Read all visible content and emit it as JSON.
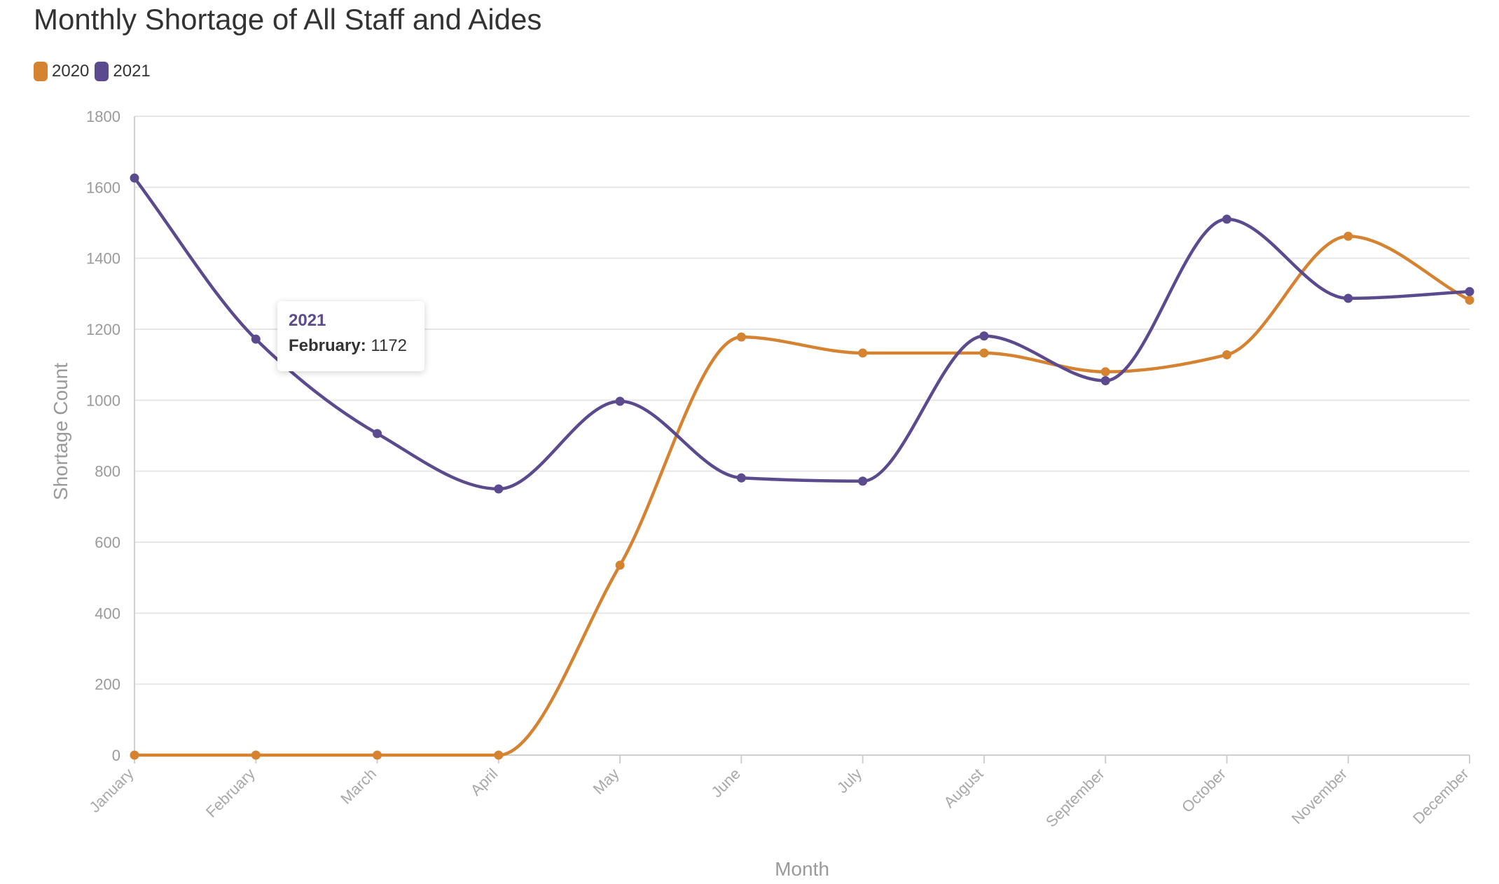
{
  "title": "Monthly Shortage of All Staff and Aides",
  "legend": [
    {
      "label": "2020",
      "color": "#d58231"
    },
    {
      "label": "2021",
      "color": "#5c4a8e"
    }
  ],
  "tooltip": {
    "series": "2021",
    "category": "February:",
    "value": "1172"
  },
  "chart_data": {
    "type": "line",
    "title": "Monthly Shortage of All Staff and Aides",
    "xlabel": "Month",
    "ylabel": "Shortage Count",
    "categories": [
      "January",
      "February",
      "March",
      "April",
      "May",
      "June",
      "July",
      "August",
      "September",
      "October",
      "November",
      "December"
    ],
    "series": [
      {
        "name": "2020",
        "color": "#d58231",
        "values": [
          0,
          0,
          0,
          0,
          535,
          1178,
          1133,
          1133,
          1080,
          1128,
          1462,
          1282
        ]
      },
      {
        "name": "2021",
        "color": "#5c4a8e",
        "values": [
          1626,
          1172,
          906,
          750,
          997,
          781,
          772,
          1181,
          1055,
          1510,
          1287,
          1306
        ]
      }
    ],
    "ylim": [
      0,
      1800
    ],
    "yticks": [
      0,
      200,
      400,
      600,
      800,
      1000,
      1200,
      1400,
      1600,
      1800
    ],
    "grid": true,
    "legend_position": "top-left"
  }
}
